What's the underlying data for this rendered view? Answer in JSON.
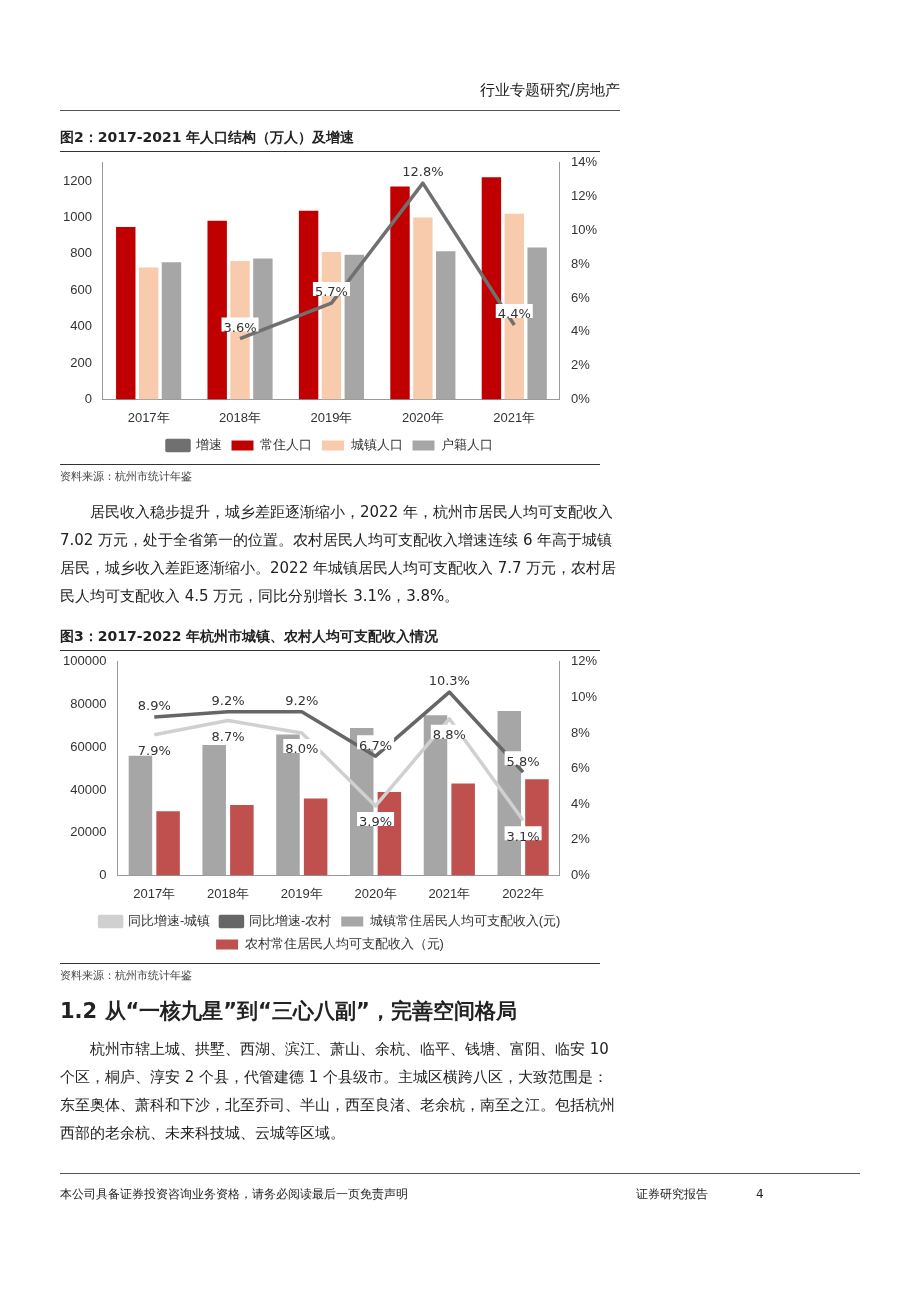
{
  "chart_data": [
    {
      "type": "other",
      "annotations": [
        "行业专题研究/房地产"
      ]
    },
    {
      "type": "bar",
      "title": "图2：2017-2021 年人口结构（万人）及增速",
      "categories": [
        "2017年",
        "2018年",
        "2019年",
        "2020年",
        "2021年"
      ],
      "series": [
        {
          "name": "常住人口",
          "color": "#c00000",
          "values": [
            947,
            981,
            1036,
            1170,
            1220
          ]
        },
        {
          "name": "城镇人口",
          "color": "#f8cbad",
          "values": [
            725,
            760,
            810,
            1000,
            1020
          ]
        },
        {
          "name": "户籍人口",
          "color": "#a6a6a6",
          "values": [
            754,
            774,
            795,
            814,
            834
          ]
        },
        {
          "name": "增速",
          "type": "line",
          "axis": "y2",
          "color": "#707070",
          "values": [
            null,
            3.6,
            5.7,
            12.8,
            4.4
          ],
          "value_labels": [
            null,
            "3.6%",
            "5.7%",
            "12.8%",
            "4.4%"
          ]
        }
      ],
      "ylim": [
        0,
        1300
      ],
      "yticks": [
        0,
        200,
        400,
        600,
        800,
        1000,
        1200
      ],
      "y2lim": [
        0,
        14
      ],
      "y2ticks": [
        {
          "value": 0,
          "label": "0%"
        },
        {
          "value": 2,
          "label": "2%"
        },
        {
          "value": 4,
          "label": "4%"
        },
        {
          "value": 6,
          "label": "6%"
        },
        {
          "value": 8,
          "label": "8%"
        },
        {
          "value": 10,
          "label": "10%"
        },
        {
          "value": 12,
          "label": "12%"
        },
        {
          "value": 14,
          "label": "14%"
        }
      ],
      "legend": "bottom",
      "marker": "none",
      "annotations": [
        "资料来源：杭州市统计年鉴"
      ]
    },
    {
      "type": "other",
      "annotations": [
        "居民收入稳步提升，城乡差距逐渐缩小，2022 年，杭州市居民人均可支配收入 7.02 万元，处于全省第一的位置。农村居民人均可支配收入增速连续 6 年高于城镇居民，城乡收入差距逐渐缩小。2022 年城镇居民人均可支配收入 7.7 万元，农村居民人均可支配收入 4.5 万元，同比分别增长 3.1%，3.8%。"
      ]
    },
    {
      "type": "bar",
      "title": "图3：2017-2022 年杭州市城镇、农村人均可支配收入情况",
      "categories": [
        "2017年",
        "2018年",
        "2019年",
        "2020年",
        "2021年",
        "2022年"
      ],
      "series": [
        {
          "name": "城镇常住居民人均可支配收入(元)",
          "color": "#a6a6a6",
          "values": [
            56000,
            61000,
            66000,
            69000,
            75000,
            77000
          ]
        },
        {
          "name": "农村常住居民人均可支配收入（元)",
          "color": "#c0504d",
          "values": [
            30000,
            33000,
            36000,
            39000,
            43000,
            45000
          ]
        },
        {
          "name": "同比增速-城镇",
          "type": "line",
          "axis": "y2",
          "color": "#d0d0d0",
          "values": [
            7.9,
            8.7,
            8.0,
            3.9,
            8.8,
            3.1
          ],
          "value_labels": [
            "7.9%",
            "8.7%",
            "8.0%",
            "3.9%",
            "8.8%",
            "3.1%"
          ]
        },
        {
          "name": "同比增速-农村",
          "type": "line",
          "axis": "y2",
          "color": "#666666",
          "values": [
            8.9,
            9.2,
            9.2,
            6.7,
            10.3,
            5.8
          ],
          "value_labels": [
            "8.9%",
            "9.2%",
            "9.2%",
            "6.7%",
            "10.3%",
            "5.8%"
          ]
        }
      ],
      "ylim": [
        0,
        100000
      ],
      "yticks": [
        0,
        20000,
        40000,
        60000,
        80000,
        100000
      ],
      "y2lim": [
        0,
        12
      ],
      "y2ticks": [
        {
          "value": 0,
          "label": "0%"
        },
        {
          "value": 2,
          "label": "2%"
        },
        {
          "value": 4,
          "label": "4%"
        },
        {
          "value": 6,
          "label": "6%"
        },
        {
          "value": 8,
          "label": "8%"
        },
        {
          "value": 10,
          "label": "10%"
        },
        {
          "value": 12,
          "label": "12%"
        }
      ],
      "legend": "bottom",
      "marker": "none",
      "annotations": [
        "资料来源：杭州市统计年鉴"
      ]
    },
    {
      "type": "other",
      "title": "1.2 从“一核九星”到“三心八副”，完善空间格局",
      "annotations": [
        "杭州市辖上城、拱墅、西湖、滨江、萧山、余杭、临平、钱塘、富阳、临安 10 个区，桐庐、淳安 2 个县，代管建德 1 个县级市。主城区横跨八区，大致范围是：东至奥体、萧科和下沙，北至乔司、半山，西至良渚、老余杭，南至之江。包括杭州西部的老余杭、未来科技城、云城等区域。",
        "本公司具备证券投资咨询业务资格，请务必阅读最后一页免责声明　　　　　　　　　　　　　　　　　　　证券研究报告　　　　4"
      ]
    }
  ]
}
